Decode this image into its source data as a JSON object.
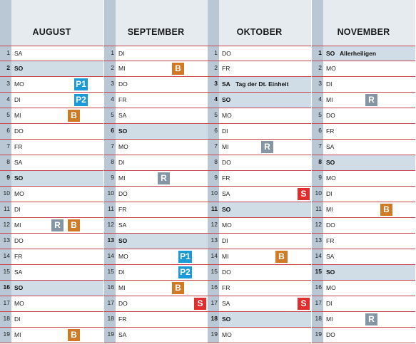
{
  "colors": {
    "B": "#d07a26",
    "R": "#8595a3",
    "S": "#e22d2d",
    "P": "#1a9ad6",
    "weekend_row": "#d0dde7",
    "header": "#e6ebef",
    "rule": "#c8454f"
  },
  "months": [
    {
      "name": "AUGUST",
      "rows": [
        {
          "n": "1",
          "day": "SA",
          "we": false
        },
        {
          "n": "2",
          "day": "SO",
          "we": true
        },
        {
          "n": "3",
          "day": "MO",
          "we": false,
          "badges": [
            {
              "type": "P",
              "label": "P1"
            }
          ]
        },
        {
          "n": "4",
          "day": "DI",
          "we": false,
          "badges": [
            {
              "type": "P",
              "label": "P2"
            }
          ]
        },
        {
          "n": "5",
          "day": "MI",
          "we": false,
          "badges": [
            {
              "type": "B",
              "label": "B"
            }
          ]
        },
        {
          "n": "6",
          "day": "DO",
          "we": false
        },
        {
          "n": "7",
          "day": "FR",
          "we": false
        },
        {
          "n": "8",
          "day": "SA",
          "we": false
        },
        {
          "n": "9",
          "day": "SO",
          "we": true
        },
        {
          "n": "10",
          "day": "MO",
          "we": false
        },
        {
          "n": "11",
          "day": "DI",
          "we": false
        },
        {
          "n": "12",
          "day": "MI",
          "we": false,
          "badges": [
            {
              "type": "R",
              "label": "R"
            },
            {
              "type": "B",
              "label": "B"
            }
          ]
        },
        {
          "n": "13",
          "day": "DO",
          "we": false
        },
        {
          "n": "14",
          "day": "FR",
          "we": false
        },
        {
          "n": "15",
          "day": "SA",
          "we": false
        },
        {
          "n": "16",
          "day": "SO",
          "we": true
        },
        {
          "n": "17",
          "day": "MO",
          "we": false
        },
        {
          "n": "18",
          "day": "DI",
          "we": false
        },
        {
          "n": "19",
          "day": "MI",
          "we": false,
          "badges": [
            {
              "type": "B",
              "label": "B"
            }
          ]
        }
      ]
    },
    {
      "name": "SEPTEMBER",
      "rows": [
        {
          "n": "1",
          "day": "DI",
          "we": false
        },
        {
          "n": "2",
          "day": "MI",
          "we": false,
          "badges": [
            {
              "type": "B",
              "label": "B"
            }
          ]
        },
        {
          "n": "3",
          "day": "DO",
          "we": false
        },
        {
          "n": "4",
          "day": "FR",
          "we": false
        },
        {
          "n": "5",
          "day": "SA",
          "we": false
        },
        {
          "n": "6",
          "day": "SO",
          "we": true
        },
        {
          "n": "7",
          "day": "MO",
          "we": false
        },
        {
          "n": "8",
          "day": "DI",
          "we": false
        },
        {
          "n": "9",
          "day": "MI",
          "we": false,
          "badges": [
            {
              "type": "R",
              "label": "R"
            }
          ]
        },
        {
          "n": "10",
          "day": "DO",
          "we": false
        },
        {
          "n": "11",
          "day": "FR",
          "we": false
        },
        {
          "n": "12",
          "day": "SA",
          "we": false
        },
        {
          "n": "13",
          "day": "SO",
          "we": true
        },
        {
          "n": "14",
          "day": "MO",
          "we": false,
          "badges": [
            {
              "type": "P",
              "label": "P1"
            }
          ]
        },
        {
          "n": "15",
          "day": "DI",
          "we": false,
          "badges": [
            {
              "type": "P",
              "label": "P2"
            }
          ]
        },
        {
          "n": "16",
          "day": "MI",
          "we": false,
          "badges": [
            {
              "type": "B",
              "label": "B"
            }
          ]
        },
        {
          "n": "17",
          "day": "DO",
          "we": false,
          "badges": [
            {
              "type": "S",
              "label": "S"
            }
          ]
        },
        {
          "n": "18",
          "day": "FR",
          "we": false
        },
        {
          "n": "19",
          "day": "SA",
          "we": false
        }
      ]
    },
    {
      "name": "OKTOBER",
      "rows": [
        {
          "n": "1",
          "day": "DO",
          "we": false
        },
        {
          "n": "2",
          "day": "FR",
          "we": false
        },
        {
          "n": "3",
          "day": "SA",
          "we": true,
          "holiday": "Tag der Dt. Einheit"
        },
        {
          "n": "4",
          "day": "SO",
          "we": true
        },
        {
          "n": "5",
          "day": "MO",
          "we": false
        },
        {
          "n": "6",
          "day": "DI",
          "we": false
        },
        {
          "n": "7",
          "day": "MI",
          "we": false,
          "badges": [
            {
              "type": "R",
              "label": "R"
            }
          ]
        },
        {
          "n": "8",
          "day": "DO",
          "we": false
        },
        {
          "n": "9",
          "day": "FR",
          "we": false
        },
        {
          "n": "10",
          "day": "SA",
          "we": false,
          "badges": [
            {
              "type": "S",
              "label": "S"
            }
          ]
        },
        {
          "n": "11",
          "day": "SO",
          "we": true
        },
        {
          "n": "12",
          "day": "MO",
          "we": false
        },
        {
          "n": "13",
          "day": "DI",
          "we": false
        },
        {
          "n": "14",
          "day": "MI",
          "we": false,
          "badges": [
            {
              "type": "B",
              "label": "B"
            }
          ]
        },
        {
          "n": "15",
          "day": "DO",
          "we": false
        },
        {
          "n": "16",
          "day": "FR",
          "we": false
        },
        {
          "n": "17",
          "day": "SA",
          "we": false,
          "badges": [
            {
              "type": "S",
              "label": "S"
            }
          ]
        },
        {
          "n": "18",
          "day": "SO",
          "we": true
        },
        {
          "n": "19",
          "day": "MO",
          "we": false
        }
      ]
    },
    {
      "name": "NOVEMBER",
      "rows": [
        {
          "n": "1",
          "day": "SO",
          "we": true,
          "holiday": "Allerheiligen"
        },
        {
          "n": "2",
          "day": "MO",
          "we": false
        },
        {
          "n": "3",
          "day": "DI",
          "we": false
        },
        {
          "n": "4",
          "day": "MI",
          "we": false,
          "badges": [
            {
              "type": "R",
              "label": "R"
            }
          ]
        },
        {
          "n": "5",
          "day": "DO",
          "we": false
        },
        {
          "n": "6",
          "day": "FR",
          "we": false
        },
        {
          "n": "7",
          "day": "SA",
          "we": false
        },
        {
          "n": "8",
          "day": "SO",
          "we": true
        },
        {
          "n": "9",
          "day": "MO",
          "we": false
        },
        {
          "n": "10",
          "day": "DI",
          "we": false
        },
        {
          "n": "11",
          "day": "MI",
          "we": false,
          "badges": [
            {
              "type": "B",
              "label": "B"
            }
          ]
        },
        {
          "n": "12",
          "day": "DO",
          "we": false
        },
        {
          "n": "13",
          "day": "FR",
          "we": false
        },
        {
          "n": "14",
          "day": "SA",
          "we": false
        },
        {
          "n": "15",
          "day": "SO",
          "we": true
        },
        {
          "n": "16",
          "day": "MO",
          "we": false
        },
        {
          "n": "17",
          "day": "DI",
          "we": false
        },
        {
          "n": "18",
          "day": "MI",
          "we": false,
          "badges": [
            {
              "type": "R",
              "label": "R"
            }
          ]
        },
        {
          "n": "19",
          "day": "DO",
          "we": false
        }
      ]
    }
  ]
}
